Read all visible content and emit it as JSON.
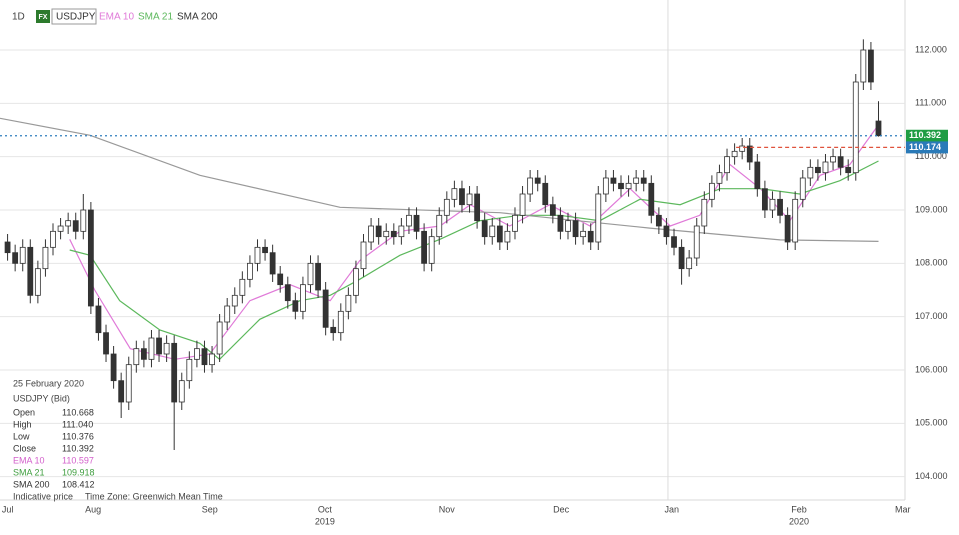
{
  "chart_data": {
    "type": "candlestick",
    "interval": "1D",
    "instrument_badge": "FX",
    "symbol": "USDJPY",
    "open": [
      108.4,
      108.2,
      108.0,
      108.3,
      107.4,
      107.9,
      108.3,
      108.6,
      108.7,
      108.8,
      108.6,
      109.0,
      107.2,
      106.7,
      106.3,
      105.8,
      105.4,
      106.1,
      106.4,
      106.2,
      106.6,
      106.3,
      106.5,
      105.4,
      105.8,
      106.2,
      106.4,
      106.1,
      106.3,
      106.9,
      107.2,
      107.4,
      107.7,
      108.0,
      108.3,
      108.2,
      107.8,
      107.6,
      107.3,
      107.1,
      107.6,
      108.0,
      107.5,
      106.8,
      106.7,
      107.1,
      107.4,
      107.9,
      108.4,
      108.7,
      108.5,
      108.6,
      108.5,
      108.7,
      108.9,
      108.6,
      108.0,
      108.5,
      108.9,
      109.2,
      109.4,
      109.1,
      109.3,
      108.8,
      108.5,
      108.7,
      108.4,
      108.6,
      108.9,
      109.3,
      109.6,
      109.5,
      109.1,
      108.9,
      108.6,
      108.8,
      108.5,
      108.6,
      108.4,
      109.3,
      109.6,
      109.5,
      109.4,
      109.5,
      109.6,
      109.5,
      108.9,
      108.7,
      108.5,
      108.3,
      107.9,
      108.1,
      108.7,
      109.2,
      109.5,
      109.7,
      110.0,
      110.1,
      110.2,
      109.9,
      109.4,
      109.0,
      109.2,
      108.9,
      108.4,
      109.2,
      109.6,
      109.8,
      109.7,
      109.9,
      110.0,
      109.8,
      109.7,
      111.4,
      112.0,
      110.668
    ],
    "high": [
      108.55,
      108.35,
      108.45,
      108.45,
      108.05,
      108.45,
      108.75,
      108.85,
      108.95,
      108.95,
      109.3,
      109.15,
      107.35,
      106.85,
      106.45,
      105.95,
      106.25,
      106.55,
      106.55,
      106.75,
      106.75,
      106.65,
      106.65,
      105.95,
      106.35,
      106.55,
      106.55,
      106.45,
      107.05,
      107.35,
      107.55,
      107.85,
      108.15,
      108.45,
      108.45,
      108.35,
      107.95,
      107.75,
      107.45,
      107.75,
      108.15,
      108.15,
      107.65,
      106.95,
      107.25,
      107.55,
      108.05,
      108.55,
      108.85,
      108.85,
      108.75,
      108.75,
      108.85,
      109.05,
      109.05,
      108.75,
      108.65,
      109.05,
      109.35,
      109.55,
      109.55,
      109.45,
      109.45,
      108.95,
      108.85,
      108.85,
      108.75,
      109.05,
      109.45,
      109.75,
      109.75,
      109.65,
      109.25,
      109.05,
      108.95,
      108.95,
      108.75,
      108.75,
      109.45,
      109.75,
      109.75,
      109.65,
      109.65,
      109.75,
      109.75,
      109.65,
      109.05,
      108.85,
      108.65,
      108.45,
      108.25,
      108.85,
      109.35,
      109.65,
      109.85,
      110.15,
      110.25,
      110.35,
      110.35,
      110.05,
      109.55,
      109.35,
      109.35,
      109.05,
      109.35,
      109.75,
      109.95,
      109.95,
      110.05,
      110.15,
      110.15,
      109.95,
      111.55,
      112.2,
      112.15,
      111.04
    ],
    "low": [
      108.05,
      107.85,
      107.85,
      107.25,
      107.25,
      107.75,
      108.15,
      108.45,
      108.55,
      108.45,
      108.45,
      107.05,
      106.55,
      106.15,
      105.65,
      105.1,
      105.25,
      105.95,
      106.05,
      106.05,
      106.15,
      106.15,
      104.5,
      105.25,
      105.65,
      106.05,
      105.95,
      105.95,
      106.15,
      106.75,
      107.05,
      107.25,
      107.55,
      107.85,
      108.05,
      107.65,
      107.45,
      107.15,
      106.95,
      106.95,
      107.45,
      107.35,
      106.65,
      106.55,
      106.55,
      106.95,
      107.25,
      107.75,
      108.25,
      108.35,
      108.35,
      108.35,
      108.35,
      108.55,
      108.45,
      107.85,
      107.85,
      108.35,
      108.75,
      109.05,
      108.95,
      108.95,
      108.65,
      108.35,
      108.35,
      108.25,
      108.25,
      108.45,
      108.75,
      109.15,
      109.35,
      108.95,
      108.75,
      108.45,
      108.45,
      108.35,
      108.35,
      108.25,
      108.25,
      109.15,
      109.35,
      109.25,
      109.25,
      109.35,
      109.35,
      108.75,
      108.55,
      108.35,
      108.15,
      107.6,
      107.75,
      107.95,
      108.55,
      109.05,
      109.35,
      109.55,
      109.85,
      109.95,
      109.75,
      109.25,
      108.85,
      108.85,
      108.75,
      108.25,
      108.25,
      109.05,
      109.45,
      109.55,
      109.55,
      109.75,
      109.65,
      109.55,
      109.55,
      111.25,
      111.25,
      110.376
    ],
    "close": [
      108.2,
      108.0,
      108.3,
      107.4,
      107.9,
      108.3,
      108.6,
      108.7,
      108.8,
      108.6,
      109.0,
      107.2,
      106.7,
      106.3,
      105.8,
      105.4,
      106.1,
      106.4,
      106.2,
      106.6,
      106.3,
      106.5,
      105.4,
      105.8,
      106.2,
      106.4,
      106.1,
      106.3,
      106.9,
      107.2,
      107.4,
      107.7,
      108.0,
      108.3,
      108.2,
      107.8,
      107.6,
      107.3,
      107.1,
      107.6,
      108.0,
      107.5,
      106.8,
      106.7,
      107.1,
      107.4,
      107.9,
      108.4,
      108.7,
      108.5,
      108.6,
      108.5,
      108.7,
      108.9,
      108.6,
      108.0,
      108.5,
      108.9,
      109.2,
      109.4,
      109.1,
      109.3,
      108.8,
      108.5,
      108.7,
      108.4,
      108.6,
      108.9,
      109.3,
      109.6,
      109.5,
      109.1,
      108.9,
      108.6,
      108.8,
      108.5,
      108.6,
      108.4,
      109.3,
      109.6,
      109.5,
      109.4,
      109.5,
      109.6,
      109.5,
      108.9,
      108.7,
      108.5,
      108.3,
      107.9,
      108.1,
      108.7,
      109.2,
      109.5,
      109.7,
      110.0,
      110.1,
      110.2,
      109.9,
      109.4,
      109.0,
      109.2,
      108.9,
      108.4,
      109.2,
      109.6,
      109.8,
      109.7,
      109.9,
      110.0,
      109.8,
      109.7,
      111.4,
      112.0,
      111.4,
      110.392
    ],
    "series": [
      {
        "name": "EMA 10",
        "color": "#e07ad8",
        "x": [
          8.2,
          11.5,
          16.2,
          22.1,
          26.7,
          32.0,
          37.3,
          42.6,
          46.5,
          51.8,
          57.1,
          61.1,
          66.3,
          71.6,
          76.9,
          82.2,
          87.5,
          91.4,
          95.4,
          99.4,
          103.3,
          107.3,
          111.2,
          115
        ],
        "values": [
          108.45,
          107.5,
          106.4,
          106.2,
          106.3,
          107.3,
          107.6,
          107.3,
          108.05,
          108.6,
          108.7,
          109.1,
          108.7,
          109.1,
          108.7,
          109.4,
          108.7,
          108.9,
          109.85,
          109.4,
          108.8,
          109.65,
          109.85,
          110.597
        ]
      },
      {
        "name": "SMA 21",
        "color": "#5cb85c",
        "x": [
          8.2,
          10.9,
          14.8,
          20.1,
          25.4,
          28.0,
          33.3,
          38.6,
          42.6,
          46.5,
          51.8,
          57.1,
          62.4,
          67.7,
          72.9,
          78.2,
          83.5,
          88.8,
          94.1,
          99.4,
          104.6,
          109.9,
          115
        ],
        "values": [
          108.25,
          108.15,
          107.3,
          106.75,
          106.5,
          106.2,
          106.95,
          107.3,
          107.4,
          107.7,
          108.15,
          108.45,
          108.8,
          108.9,
          108.9,
          108.8,
          109.2,
          109.1,
          109.4,
          109.4,
          109.3,
          109.55,
          109.918
        ]
      },
      {
        "name": "SMA 200",
        "color": "#999999",
        "x": [
          -1,
          10.9,
          25.4,
          43.9,
          65.0,
          84.8,
          102.0,
          115
        ],
        "values": [
          110.72,
          110.4,
          109.65,
          109.05,
          108.95,
          108.66,
          108.44,
          108.412
        ]
      }
    ],
    "xlim": [
      -1,
      118.5
    ],
    "ylim": [
      103.6,
      112.75
    ],
    "yticks": [
      {
        "value": 104,
        "label": "104.000"
      },
      {
        "value": 105,
        "label": "105.000"
      },
      {
        "value": 106,
        "label": "106.000"
      },
      {
        "value": 107,
        "label": "107.000"
      },
      {
        "value": 108,
        "label": "108.000"
      },
      {
        "value": 109,
        "label": "109.000"
      },
      {
        "value": 110,
        "label": "110.000"
      },
      {
        "value": 111,
        "label": "111.000"
      },
      {
        "value": 112,
        "label": "112.000"
      }
    ],
    "xticks": [
      {
        "value": 0,
        "label": "Jul"
      },
      {
        "value": 11.3,
        "label": "Aug"
      },
      {
        "value": 26.7,
        "label": "Sep"
      },
      {
        "value": 41.9,
        "label": "Oct"
      },
      {
        "value": 58.0,
        "label": "Nov"
      },
      {
        "value": 73.1,
        "label": "Dec"
      },
      {
        "value": 87.7,
        "label": "Jan"
      },
      {
        "value": 104.5,
        "label": "Feb"
      },
      {
        "value": 118.2,
        "label": "Mar"
      }
    ],
    "year_labels": [
      {
        "value": 41.9,
        "label": "2019"
      },
      {
        "value": 104.5,
        "label": "2020"
      }
    ],
    "year_separator": 87.2,
    "grid": true,
    "price_lines": [
      {
        "value": 110.392,
        "line_color": "#2f7fbf",
        "box_color": "#1f9d44",
        "style": "dotted"
      },
      {
        "value": 110.174,
        "line_color": "#e0533d",
        "box_color": "#2a7ab8",
        "style": "dashed",
        "from": 96.2
      }
    ],
    "info_box": {
      "date": "25 February 2020",
      "instrument": "USDJPY (Bid)",
      "rows": [
        {
          "label": "Open",
          "value": "110.668",
          "color": "#333333"
        },
        {
          "label": "High",
          "value": "111.040",
          "color": "#333333"
        },
        {
          "label": "Low",
          "value": "110.376",
          "color": "#333333"
        },
        {
          "label": "Close",
          "value": "110.392",
          "color": "#333333"
        },
        {
          "label": "EMA 10",
          "value": "110.597",
          "color": "#d35fcb"
        },
        {
          "label": "SMA 21",
          "value": "109.918",
          "color": "#3f9e3f"
        },
        {
          "label": "SMA 200",
          "value": "108.412",
          "color": "#333333"
        }
      ],
      "footer": [
        "Indicative price",
        "Time Zone: Greenwich Mean Time"
      ]
    }
  }
}
